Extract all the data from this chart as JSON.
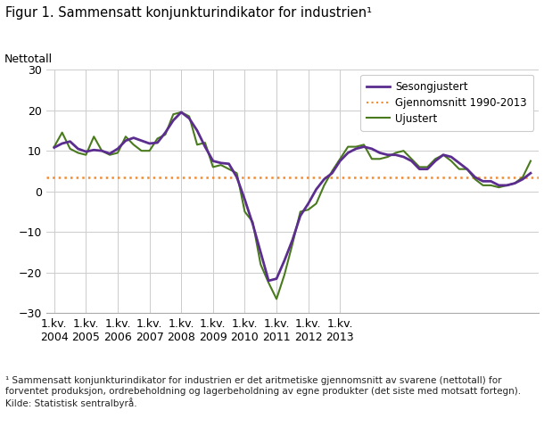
{
  "title": "Figur 1. Sammensatt konjunkturindikator for industrien¹",
  "ylabel": "Nettotall",
  "footnote": "¹ Sammensatt konjunkturindikator for industrien er det aritmetiske gjennomsnitt av svarene (nettotall) for\nforventet produksjon, ordrebeholdning og lagerbeholdning av egne produkter (det siste med motsatt fortegn).\nKilde: Statistisk sentralbyrå.",
  "ylim": [
    -30,
    30
  ],
  "yticks": [
    -30,
    -20,
    -10,
    0,
    10,
    20,
    30
  ],
  "average_value": 3.5,
  "legend_labels": [
    "Sesongjustert",
    "Gjennomsnitt 1990-2013",
    "Ujustert"
  ],
  "sesongjustert_color": "#5b2d8e",
  "ujustert_color": "#4a7a1e",
  "gjennomsnitt_color": "#f28a30",
  "background_color": "#ffffff",
  "grid_color": "#cccccc",
  "x_tick_labels": [
    "1.kv.\n2004",
    "1.kv.\n2005",
    "1.kv.\n2006",
    "1.kv.\n2007",
    "1.kv.\n2008",
    "1.kv.\n2009",
    "1.kv.\n2010",
    "1.kv.\n2011",
    "1.kv.\n2012",
    "1.kv.\n2013"
  ],
  "sesongjustert": [
    10.8,
    11.8,
    12.3,
    10.5,
    9.8,
    10.2,
    10.0,
    9.3,
    10.5,
    12.5,
    13.2,
    12.5,
    11.8,
    12.0,
    14.5,
    17.5,
    19.5,
    18.0,
    15.0,
    11.0,
    7.5,
    7.0,
    6.8,
    3.5,
    -2.0,
    -8.0,
    -15.0,
    -22.0,
    -21.5,
    -17.0,
    -12.0,
    -6.0,
    -3.0,
    0.5,
    3.0,
    4.5,
    7.5,
    9.5,
    10.5,
    11.0,
    10.5,
    9.5,
    9.0,
    9.0,
    8.5,
    7.5,
    5.5,
    5.5,
    7.5,
    9.0,
    8.5,
    7.0,
    5.5,
    3.5,
    2.5,
    2.5,
    1.5,
    1.5,
    2.0,
    3.0,
    4.5
  ],
  "ujustert": [
    11.0,
    14.5,
    10.5,
    9.5,
    9.0,
    13.5,
    10.0,
    9.0,
    9.5,
    13.5,
    11.5,
    10.0,
    10.0,
    13.0,
    14.0,
    19.0,
    19.5,
    18.5,
    11.5,
    12.0,
    6.0,
    6.5,
    5.5,
    4.5,
    -5.0,
    -7.5,
    -18.0,
    -22.5,
    -26.5,
    -20.5,
    -13.0,
    -5.0,
    -4.5,
    -3.0,
    1.5,
    5.0,
    8.0,
    11.0,
    11.0,
    11.5,
    8.0,
    8.0,
    8.5,
    9.5,
    10.0,
    8.0,
    6.0,
    6.0,
    8.0,
    9.0,
    7.5,
    5.5,
    5.5,
    3.0,
    1.5,
    1.5,
    1.0,
    1.5,
    2.0,
    3.5,
    7.5
  ]
}
